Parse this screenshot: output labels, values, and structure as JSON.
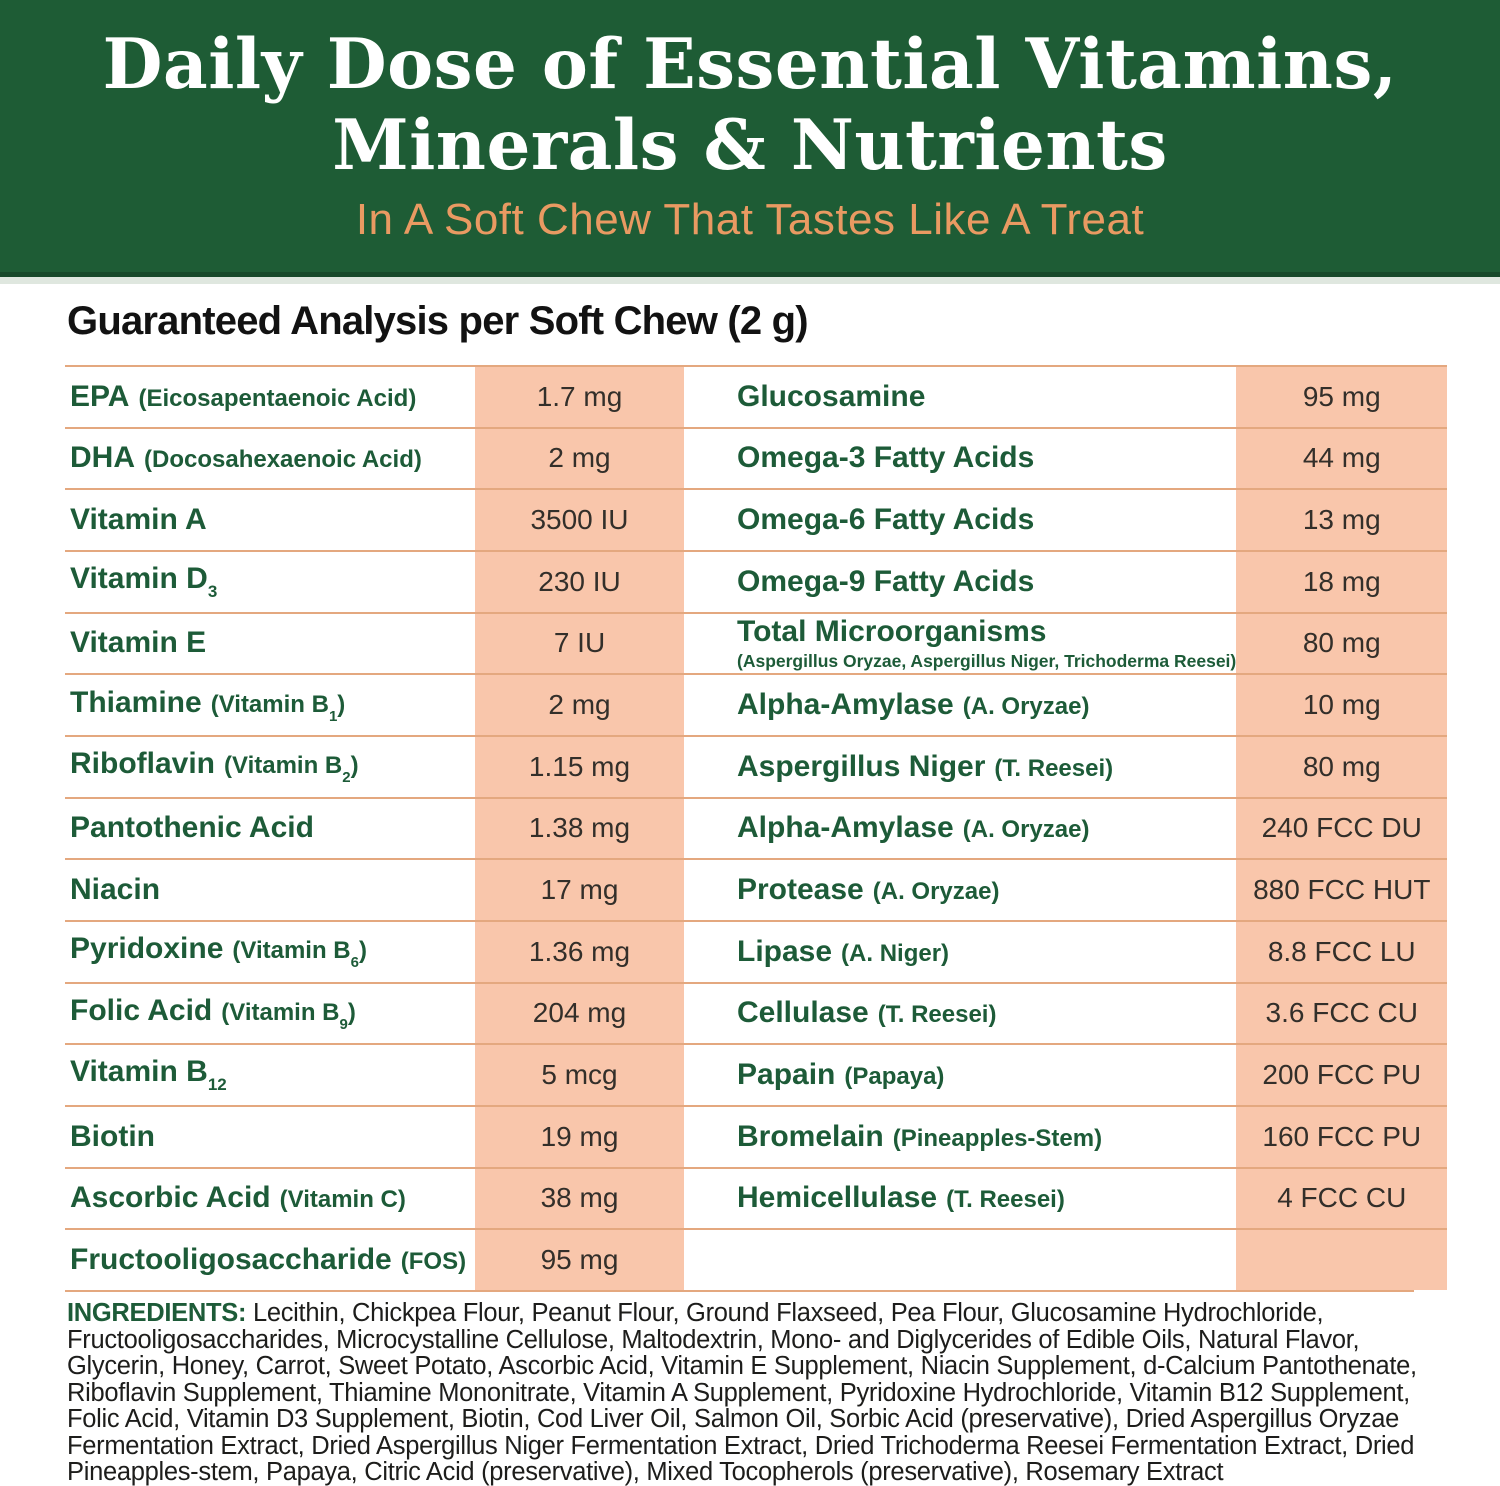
{
  "banner": {
    "title_line1": "Daily Dose of Essential Vitamins,",
    "title_line2": "Minerals & Nutrients",
    "subtitle": "In A Soft Chew That Tastes Like A Treat",
    "bg_color": "#1E5C35",
    "title_color": "#FFFFFF",
    "subtitle_color": "#E99A62"
  },
  "heading": "Guaranteed Analysis per Soft Chew (2 g)",
  "table": {
    "accent_color": "#F9C6AB",
    "divider_color": "#E4A87F",
    "label_color": "#1D5B38",
    "value_color": "#332F2A",
    "left_rows": [
      {
        "label": "EPA",
        "label_sub": "",
        "paren": "(Eicosapentaenoic Acid)",
        "paren_sub": "",
        "paren_end": "",
        "note": "",
        "value": "1.7 mg"
      },
      {
        "label": "DHA",
        "label_sub": "",
        "paren": "(Docosahexaenoic Acid)",
        "paren_sub": "",
        "paren_end": "",
        "note": "",
        "value": "2 mg"
      },
      {
        "label": "Vitamin A",
        "label_sub": "",
        "paren": "",
        "paren_sub": "",
        "paren_end": "",
        "note": "",
        "value": "3500 IU"
      },
      {
        "label": "Vitamin D",
        "label_sub": "3",
        "paren": "",
        "paren_sub": "",
        "paren_end": "",
        "note": "",
        "value": "230 IU"
      },
      {
        "label": "Vitamin E",
        "label_sub": "",
        "paren": "",
        "paren_sub": "",
        "paren_end": "",
        "note": "",
        "value": "7 IU"
      },
      {
        "label": "Thiamine",
        "label_sub": "",
        "paren": "(Vitamin B",
        "paren_sub": "1",
        "paren_end": ")",
        "note": "",
        "value": "2 mg"
      },
      {
        "label": "Riboflavin",
        "label_sub": "",
        "paren": "(Vitamin B",
        "paren_sub": "2",
        "paren_end": ")",
        "note": "",
        "value": "1.15 mg"
      },
      {
        "label": "Pantothenic Acid",
        "label_sub": "",
        "paren": "",
        "paren_sub": "",
        "paren_end": "",
        "note": "",
        "value": "1.38 mg"
      },
      {
        "label": "Niacin",
        "label_sub": "",
        "paren": "",
        "paren_sub": "",
        "paren_end": "",
        "note": "",
        "value": "17 mg"
      },
      {
        "label": "Pyridoxine",
        "label_sub": "",
        "paren": "(Vitamin B",
        "paren_sub": "6",
        "paren_end": ")",
        "note": "",
        "value": "1.36 mg"
      },
      {
        "label": "Folic Acid",
        "label_sub": "",
        "paren": "(Vitamin B",
        "paren_sub": "9",
        "paren_end": ")",
        "note": "",
        "value": "204 mg"
      },
      {
        "label": "Vitamin B",
        "label_sub": "12",
        "paren": "",
        "paren_sub": "",
        "paren_end": "",
        "note": "",
        "value": "5 mcg"
      },
      {
        "label": "Biotin",
        "label_sub": "",
        "paren": "",
        "paren_sub": "",
        "paren_end": "",
        "note": "",
        "value": "19 mg"
      },
      {
        "label": "Ascorbic Acid",
        "label_sub": "",
        "paren": "(Vitamin C)",
        "paren_sub": "",
        "paren_end": "",
        "note": "",
        "value": "38 mg"
      },
      {
        "label": "Fructooligosaccharide",
        "label_sub": "",
        "paren": "(FOS)",
        "paren_sub": "",
        "paren_end": "",
        "note": "",
        "value": "95 mg"
      }
    ],
    "right_rows": [
      {
        "label": "Glucosamine",
        "label_sub": "",
        "paren": "",
        "paren_sub": "",
        "paren_end": "",
        "note": "",
        "value": "95 mg"
      },
      {
        "label": "Omega-3 Fatty Acids",
        "label_sub": "",
        "paren": "",
        "paren_sub": "",
        "paren_end": "",
        "note": "",
        "value": "44 mg"
      },
      {
        "label": "Omega-6 Fatty Acids",
        "label_sub": "",
        "paren": "",
        "paren_sub": "",
        "paren_end": "",
        "note": "",
        "value": "13 mg"
      },
      {
        "label": "Omega-9 Fatty Acids",
        "label_sub": "",
        "paren": "",
        "paren_sub": "",
        "paren_end": "",
        "note": "",
        "value": "18 mg"
      },
      {
        "label": "Total Microorganisms",
        "label_sub": "",
        "paren": "",
        "paren_sub": "",
        "paren_end": "",
        "note": "(Aspergillus Oryzae, Aspergillus Niger, Trichoderma Reesei)",
        "value": "80 mg"
      },
      {
        "label": "Alpha-Amylase",
        "label_sub": "",
        "paren": "(A. Oryzae)",
        "paren_sub": "",
        "paren_end": "",
        "note": "",
        "value": "10 mg"
      },
      {
        "label": "Aspergillus Niger",
        "label_sub": "",
        "paren": "(T. Reesei)",
        "paren_sub": "",
        "paren_end": "",
        "note": "",
        "value": "80 mg"
      },
      {
        "label": "Alpha-Amylase",
        "label_sub": "",
        "paren": "(A. Oryzae)",
        "paren_sub": "",
        "paren_end": "",
        "note": "",
        "value": "240 FCC DU"
      },
      {
        "label": "Protease",
        "label_sub": "",
        "paren": "(A. Oryzae)",
        "paren_sub": "",
        "paren_end": "",
        "note": "",
        "value": "880 FCC HUT"
      },
      {
        "label": "Lipase",
        "label_sub": "",
        "paren": "(A. Niger)",
        "paren_sub": "",
        "paren_end": "",
        "note": "",
        "value": "8.8 FCC LU"
      },
      {
        "label": "Cellulase",
        "label_sub": "",
        "paren": "(T. Reesei)",
        "paren_sub": "",
        "paren_end": "",
        "note": "",
        "value": "3.6 FCC CU"
      },
      {
        "label": "Papain",
        "label_sub": "",
        "paren": "(Papaya)",
        "paren_sub": "",
        "paren_end": "",
        "note": "",
        "value": "200 FCC PU"
      },
      {
        "label": "Bromelain",
        "label_sub": "",
        "paren": "(Pineapples-Stem)",
        "paren_sub": "",
        "paren_end": "",
        "note": "",
        "value": "160 FCC PU"
      },
      {
        "label": "Hemicellulase",
        "label_sub": "",
        "paren": "(T. Reesei)",
        "paren_sub": "",
        "paren_end": "",
        "note": "",
        "value": "4 FCC CU"
      },
      {
        "label": "",
        "label_sub": "",
        "paren": "",
        "paren_sub": "",
        "paren_end": "",
        "note": "",
        "value": ""
      }
    ]
  },
  "ingredients": {
    "label": "INGREDIENTS:",
    "text": " Lecithin, Chickpea Flour, Peanut Flour, Ground Flaxseed, Pea Flour, Glucosamine Hydrochloride, Fructooligosaccharides, Microcystalline Cellulose, Maltodextrin, Mono- and Diglycerides of Edible Oils, Natural Flavor, Glycerin, Honey, Carrot, Sweet Potato, Ascorbic Acid, Vitamin E Supplement, Niacin Supplement, d-Calcium Pantothenate, Riboflavin Supplement, Thiamine Mononitrate, Vitamin A Supplement, Pyridoxine Hydrochloride, Vitamin B12 Supplement, Folic Acid, Vitamin D3 Supplement, Biotin, Cod Liver Oil, Salmon Oil, Sorbic Acid (preservative), Dried Aspergillus Oryzae Fermentation Extract, Dried Aspergillus Niger Fermentation Extract, Dried Trichoderma Reesei Fermentation Extract, Dried Pineapples-stem, Papaya, Citric Acid (preservative), Mixed Tocopherols (preservative), Rosemary Extract"
  }
}
